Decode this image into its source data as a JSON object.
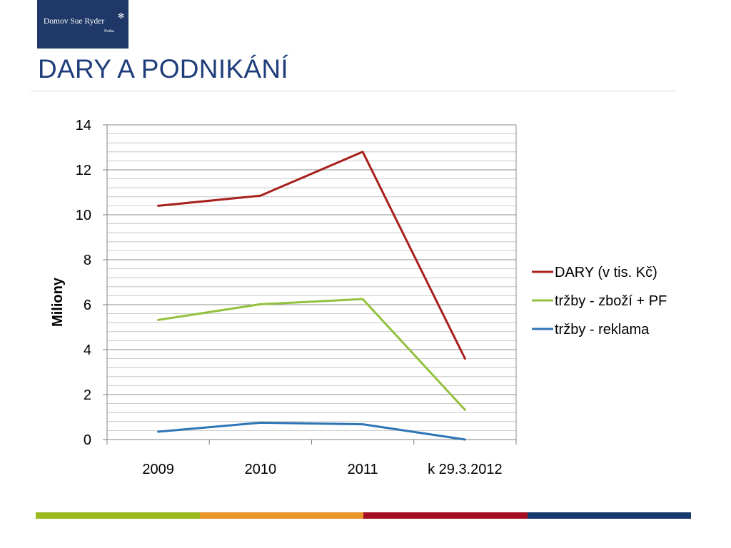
{
  "logo": {
    "name": "Domov Sue Ryder",
    "city": "Praha",
    "star": "✻"
  },
  "page_title": "DARY A PODNIKÁNÍ",
  "colors": {
    "brand_navy": "#1f3868",
    "title": "#1f3d7a",
    "bottom_bar": [
      "#9bb91e",
      "#e8962a",
      "#a50f23",
      "#17386b"
    ]
  },
  "chart_data": {
    "type": "line",
    "categories": [
      "2009",
      "2010",
      "2011",
      "k 29.3.2012"
    ],
    "ylabel": "Miliony",
    "xlabel": "",
    "ylim": [
      0,
      14
    ],
    "yticks": [
      0,
      2,
      4,
      6,
      8,
      10,
      12,
      14
    ],
    "minor_grid_step": 0.4,
    "grid": true,
    "legend_position": "right",
    "series": [
      {
        "name": "DARY (v tis. Kč)",
        "color": "#a6201c",
        "values": [
          10.4,
          10.85,
          12.8,
          3.6
        ]
      },
      {
        "name": "tržby - zboží + PF",
        "color": "#93c13e",
        "values": [
          5.32,
          6.02,
          6.25,
          1.32
        ]
      },
      {
        "name": "tržby - reklama",
        "color": "#2e75b6",
        "values": [
          0.35,
          0.75,
          0.68,
          0.0
        ]
      }
    ]
  }
}
